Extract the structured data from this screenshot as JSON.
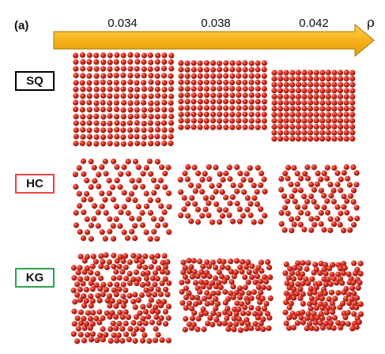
{
  "panel": "(a)",
  "axis": {
    "ticks": [
      "0.034",
      "0.038",
      "0.042"
    ],
    "symbol": "ρ",
    "arrow_color": "#F6B21B",
    "arrow_edge": "#A67800"
  },
  "rows": [
    {
      "label": "SQ",
      "border_color": "#000000"
    },
    {
      "label": "HC",
      "border_color": "#E8473F"
    },
    {
      "label": "KG",
      "border_color": "#2DA44E"
    }
  ],
  "particle_color": "#C9241A"
}
